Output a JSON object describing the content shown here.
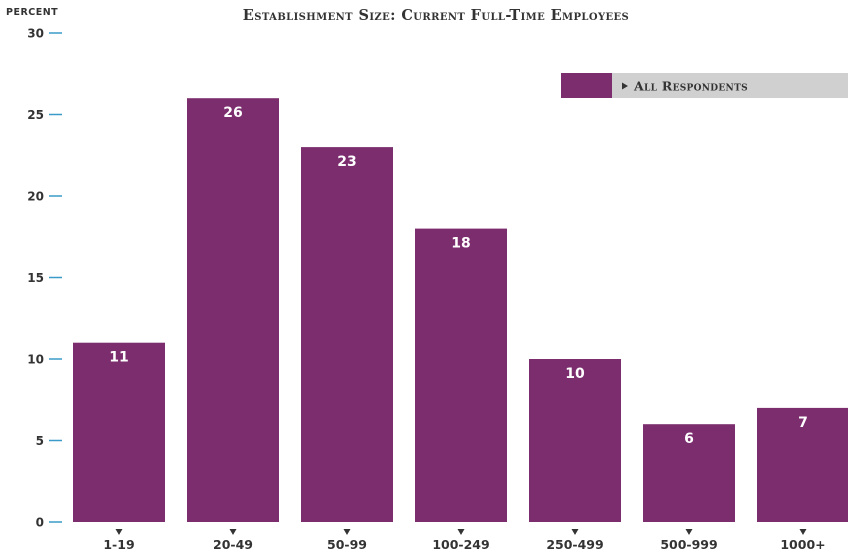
{
  "chart_data": {
    "type": "bar",
    "title": "Establishment  Size: Current Full-Time Employees",
    "ylabel": "percent",
    "xlabel": "",
    "ylim": [
      0,
      30
    ],
    "yticks": [
      0,
      5,
      10,
      15,
      20,
      25,
      30
    ],
    "yticks_labels": [
      "0",
      "5",
      "10",
      "15",
      "20",
      "25",
      "30"
    ],
    "categories": [
      "1-19",
      "20-49",
      "50-99",
      "100-249",
      "250-499",
      "500-999",
      "1000+"
    ],
    "series": [
      {
        "name": "All Respondents",
        "values": [
          11,
          26,
          23,
          18,
          10,
          6,
          7
        ],
        "labels": [
          "11",
          "26",
          "23",
          "18",
          "10",
          "6",
          "7"
        ]
      }
    ],
    "grid": false,
    "legend": "top-right",
    "colors": {
      "bar": "#7b2d6e",
      "legend_band": "#d0d0d0",
      "tick_mark": "#3a9bc8",
      "text": "#333333",
      "bar_label": "#ffffff"
    }
  }
}
